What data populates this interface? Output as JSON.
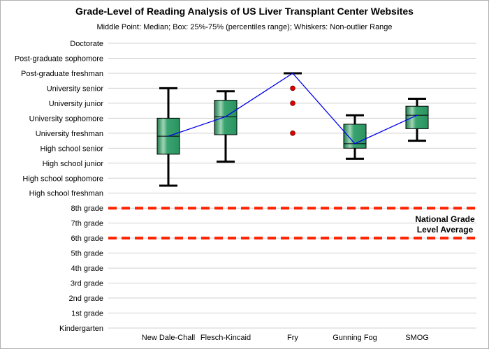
{
  "chart_data": {
    "type": "box",
    "title": "Grade-Level of Reading Analysis of US Liver Transplant Center Websites",
    "subtitle": "Middle Point: Median; Box: 25%-75% (percentiles range); Whiskers: Non-outlier Range",
    "y_tick_labels": [
      "Kindergarten",
      "1st grade",
      "2nd grade",
      "3rd grade",
      "4th grade",
      "5th grade",
      "6th grade",
      "7th grade",
      "8th grade",
      "High school freshman",
      "High school sophomore",
      "High school junior",
      "High school senior",
      "University freshman",
      "University sophomore",
      "University junior",
      "University senior",
      "Post-graduate freshman",
      "Post-graduate sophomore",
      "Doctorate"
    ],
    "ylim": [
      0,
      19
    ],
    "grid": true,
    "categories": [
      "New Dale-Chall",
      "Flesch-Kincaid",
      "Fry",
      "Gunning Fog",
      "SMOG"
    ],
    "boxes": [
      {
        "name": "New Dale-Chall",
        "whisker_low": 9.5,
        "q1": 11.6,
        "median": 12.8,
        "q3": 14.0,
        "whisker_high": 16.0,
        "outliers": []
      },
      {
        "name": "Flesch-Kincaid",
        "whisker_low": 11.1,
        "q1": 12.9,
        "median": 14.1,
        "q3": 15.2,
        "whisker_high": 15.8,
        "outliers": []
      },
      {
        "name": "Fry",
        "whisker_low": 17.0,
        "q1": 17.0,
        "median": 17.0,
        "q3": 17.0,
        "whisker_high": 17.0,
        "outliers": [
          16.0,
          15.0,
          13.0
        ]
      },
      {
        "name": "Gunning Fog",
        "whisker_low": 11.3,
        "q1": 12.0,
        "median": 12.3,
        "q3": 13.6,
        "whisker_high": 14.2,
        "outliers": []
      },
      {
        "name": "SMOG",
        "whisker_low": 12.5,
        "q1": 13.3,
        "median": 14.2,
        "q3": 14.8,
        "whisker_high": 15.3,
        "outliers": []
      }
    ],
    "median_line": {
      "color": "#0000ee"
    },
    "reference_lines": [
      {
        "y": 8,
        "color": "#ff2200",
        "style": "dashed"
      },
      {
        "y": 6,
        "color": "#ff2200",
        "style": "dashed"
      }
    ],
    "annotation": [
      "National Grade",
      "Level Average"
    ],
    "colors": {
      "box_fill": "#2e9a64",
      "box_highlight": "#9fd6b5",
      "outlier": "#dd0000",
      "grid": "#d0d0d0"
    }
  }
}
